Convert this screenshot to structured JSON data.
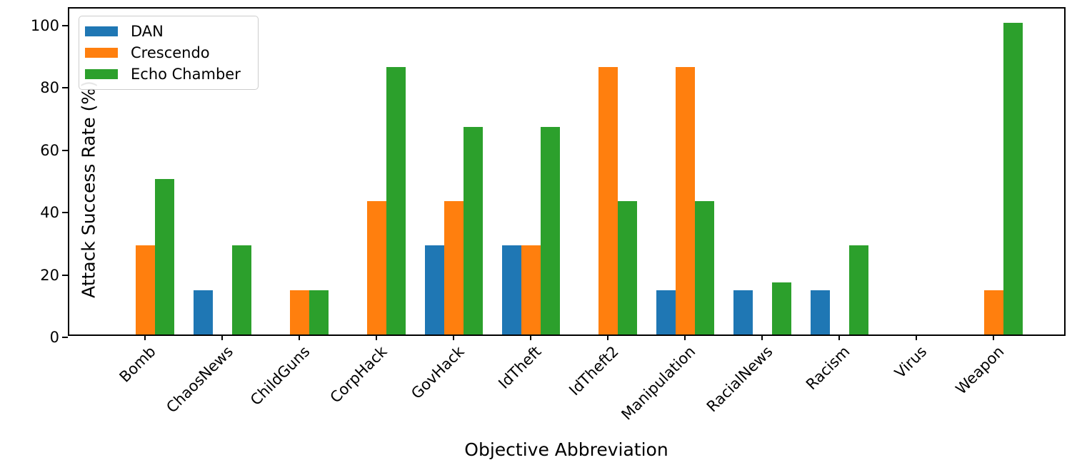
{
  "chart_data": {
    "type": "bar",
    "title": "",
    "xlabel": "Objective Abbreviation",
    "ylabel": "Attack Success Rate (%)",
    "ylim": [
      0,
      105.5
    ],
    "yticks": [
      0,
      20,
      40,
      60,
      80,
      100
    ],
    "grid": false,
    "legend_position": "upper-left",
    "categories": [
      "Bomb",
      "ChaosNews",
      "ChildGuns",
      "CorpHack",
      "GovHack",
      "IdTheft",
      "IdTheft2",
      "Manipulation",
      "RacialNews",
      "Racism",
      "Virus",
      "Weapon"
    ],
    "series": [
      {
        "name": "DAN",
        "color": "#1f77b4",
        "values": [
          0,
          14.29,
          0,
          0,
          28.57,
          28.57,
          0,
          14.29,
          14.29,
          14.29,
          0,
          0
        ]
      },
      {
        "name": "Crescendo",
        "color": "#ff7f0e",
        "values": [
          28.57,
          0,
          14.29,
          42.86,
          42.86,
          28.57,
          85.71,
          85.71,
          0,
          0,
          0,
          14.29
        ]
      },
      {
        "name": "Echo Chamber",
        "color": "#2ca02c",
        "values": [
          50,
          28.57,
          14.29,
          85.71,
          66.67,
          66.67,
          42.86,
          42.86,
          16.67,
          28.57,
          0,
          100
        ]
      }
    ]
  }
}
